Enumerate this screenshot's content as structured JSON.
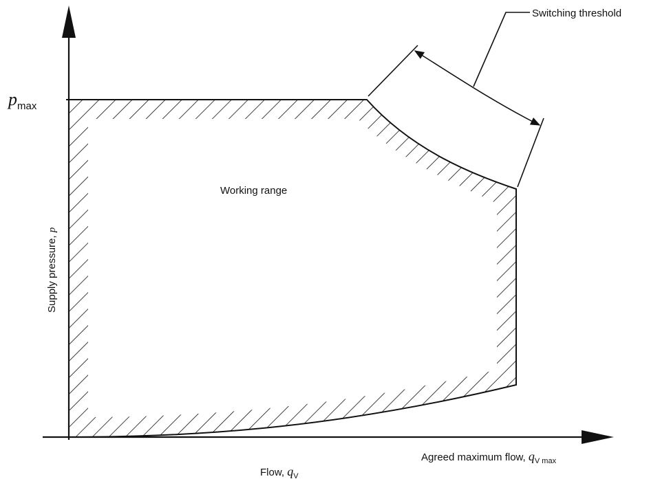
{
  "labels": {
    "p_max": {
      "symbol": "p",
      "subscript": "max"
    },
    "switching_threshold": "Switching threshold",
    "working_range": "Working range",
    "y_axis": {
      "text": "Supply pressure, ",
      "symbol": "p"
    },
    "x_axis": {
      "text": "Flow, ",
      "symbol": "q",
      "subscript": "V"
    },
    "max_flow": {
      "text": "Agreed maximum flow, ",
      "symbol": "q",
      "subscript": "V max"
    }
  }
}
